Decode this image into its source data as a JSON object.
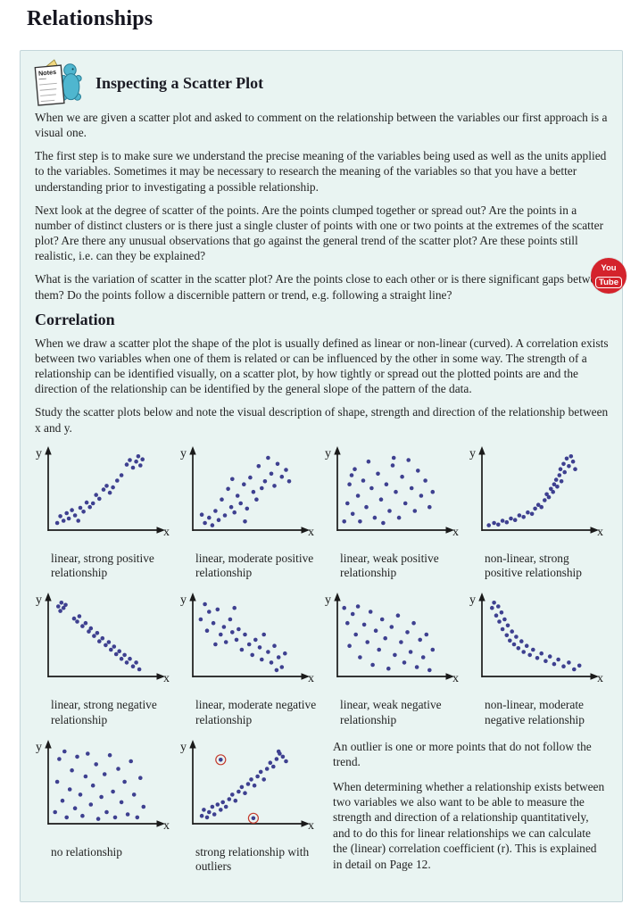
{
  "title": "Relationships",
  "notes": {
    "label": "Notes"
  },
  "section_inspecting": {
    "heading": "Inspecting a Scatter Plot",
    "p1": "When we are given a scatter plot and asked to comment on the relationship between the variables our first approach is a visual one.",
    "p2": "The first step is to make sure we understand the precise meaning of the variables being used as well as the units applied to the variables.  Sometimes it may be necessary to research the meaning of the variables so that you have a better understanding prior to investigating a possible relationship.",
    "p3": "Next look at the degree of scatter of the points.  Are the points clumped together or spread out?  Are the points in a number of distinct clusters or is there just a single cluster of points with one or two points at the extremes of the scatter plot?  Are there any unusual observations that go against the general trend of the scatter plot?  Are these points still realistic, i.e. can they be explained?",
    "p4": "What is the variation of scatter in the scatter plot?  Are the points close to each other or is there significant gaps between them?  Do the points follow a discernible pattern or trend, e.g. following a straight line?"
  },
  "section_correlation": {
    "heading": "Correlation",
    "p1": "When we draw a scatter plot the shape of the plot is usually defined as linear or non-linear (curved).  A correlation exists between two variables when one of them is related or can be influenced by the other in some way.  The strength of a relationship can be identified visually, on a scatter plot, by how tightly or spread out the plotted points are and the direction of the relationship can be identified by the general slope of the pattern of the data.",
    "p2": "Study the scatter plots below and note the visual description of shape, strength and direction of the relationship between x and y."
  },
  "youtube": {
    "line1": "You",
    "line2": "Tube"
  },
  "outlier_note": {
    "p1": "An outlier is one or more points that do not follow the trend.",
    "p2": "When determining whether a relationship exists between two variables we also want to be able to measure the strength and direction of a relationship quantitatively, and to do this for linear relationships we can calculate the (linear) correlation coefficient (r).  This is explained in detail on Page 12."
  },
  "theme": {
    "dot_color": "#3e4090",
    "axis_color": "#1a1a1a",
    "outlier_ring": "#c43b2e",
    "accent_red": "#d4232c",
    "box_bg": "#e9f4f2",
    "box_border": "#c3d6da"
  },
  "chart_data": [
    {
      "type": "scatter",
      "caption": "linear, strong positive relationship",
      "xlabel": "x",
      "ylabel": "y",
      "points": [
        [
          6,
          7
        ],
        [
          9,
          16
        ],
        [
          12,
          10
        ],
        [
          15,
          20
        ],
        [
          17,
          13
        ],
        [
          20,
          24
        ],
        [
          23,
          17
        ],
        [
          26,
          10
        ],
        [
          28,
          27
        ],
        [
          31,
          22
        ],
        [
          34,
          34
        ],
        [
          37,
          28
        ],
        [
          40,
          33
        ],
        [
          43,
          44
        ],
        [
          46,
          39
        ],
        [
          50,
          51
        ],
        [
          53,
          56
        ],
        [
          56,
          47
        ],
        [
          59,
          54
        ],
        [
          63,
          63
        ],
        [
          67,
          70
        ],
        [
          72,
          84
        ],
        [
          75,
          90
        ],
        [
          78,
          80
        ],
        [
          81,
          88
        ],
        [
          83,
          95
        ],
        [
          85,
          83
        ],
        [
          87,
          91
        ]
      ]
    },
    {
      "type": "scatter",
      "caption": "linear, moderate positive relationship",
      "xlabel": "x",
      "ylabel": "y",
      "points": [
        [
          6,
          18
        ],
        [
          9,
          7
        ],
        [
          13,
          14
        ],
        [
          16,
          4
        ],
        [
          19,
          23
        ],
        [
          22,
          11
        ],
        [
          25,
          38
        ],
        [
          28,
          17
        ],
        [
          31,
          52
        ],
        [
          34,
          28
        ],
        [
          37,
          21
        ],
        [
          40,
          43
        ],
        [
          43,
          33
        ],
        [
          46,
          58
        ],
        [
          49,
          26
        ],
        [
          52,
          67
        ],
        [
          55,
          48
        ],
        [
          58,
          38
        ],
        [
          60,
          82
        ],
        [
          63,
          53
        ],
        [
          66,
          62
        ],
        [
          69,
          93
        ],
        [
          72,
          72
        ],
        [
          75,
          56
        ],
        [
          78,
          85
        ],
        [
          82,
          68
        ],
        [
          86,
          77
        ],
        [
          89,
          62
        ],
        [
          47,
          9
        ],
        [
          35,
          65
        ]
      ]
    },
    {
      "type": "scatter",
      "caption": "linear, weak positive relationship",
      "xlabel": "x",
      "ylabel": "y",
      "points": [
        [
          4,
          9
        ],
        [
          7,
          33
        ],
        [
          9,
          58
        ],
        [
          12,
          19
        ],
        [
          14,
          78
        ],
        [
          17,
          43
        ],
        [
          19,
          9
        ],
        [
          22,
          63
        ],
        [
          25,
          28
        ],
        [
          27,
          88
        ],
        [
          30,
          53
        ],
        [
          33,
          14
        ],
        [
          36,
          72
        ],
        [
          39,
          38
        ],
        [
          41,
          7
        ],
        [
          44,
          58
        ],
        [
          47,
          23
        ],
        [
          50,
          83
        ],
        [
          53,
          48
        ],
        [
          56,
          14
        ],
        [
          59,
          68
        ],
        [
          62,
          33
        ],
        [
          65,
          90
        ],
        [
          68,
          53
        ],
        [
          71,
          23
        ],
        [
          74,
          76
        ],
        [
          77,
          43
        ],
        [
          81,
          63
        ],
        [
          85,
          28
        ],
        [
          51,
          93
        ],
        [
          88,
          48
        ],
        [
          11,
          70
        ]
      ]
    },
    {
      "type": "scatter",
      "caption": "non-linear, strong positive relationship",
      "xlabel": "x",
      "ylabel": "y",
      "points": [
        [
          4,
          4
        ],
        [
          9,
          7
        ],
        [
          13,
          5
        ],
        [
          17,
          10
        ],
        [
          21,
          8
        ],
        [
          25,
          13
        ],
        [
          29,
          11
        ],
        [
          33,
          17
        ],
        [
          37,
          15
        ],
        [
          41,
          21
        ],
        [
          45,
          19
        ],
        [
          48,
          26
        ],
        [
          51,
          31
        ],
        [
          54,
          28
        ],
        [
          57,
          37
        ],
        [
          59,
          45
        ],
        [
          61,
          41
        ],
        [
          63,
          52
        ],
        [
          65,
          48
        ],
        [
          66,
          58
        ],
        [
          68,
          64
        ],
        [
          69,
          55
        ],
        [
          71,
          70
        ],
        [
          72,
          78
        ],
        [
          73,
          62
        ],
        [
          75,
          85
        ],
        [
          76,
          74
        ],
        [
          78,
          92
        ],
        [
          80,
          82
        ],
        [
          82,
          95
        ],
        [
          84,
          88
        ],
        [
          86,
          78
        ]
      ]
    },
    {
      "type": "scatter",
      "caption": "linear, strong negative relationship",
      "xlabel": "x",
      "ylabel": "y",
      "points": [
        [
          7,
          90
        ],
        [
          10,
          95
        ],
        [
          12,
          88
        ],
        [
          9,
          84
        ],
        [
          14,
          92
        ],
        [
          22,
          74
        ],
        [
          25,
          70
        ],
        [
          27,
          77
        ],
        [
          30,
          64
        ],
        [
          33,
          68
        ],
        [
          36,
          57
        ],
        [
          38,
          61
        ],
        [
          41,
          51
        ],
        [
          44,
          55
        ],
        [
          46,
          44
        ],
        [
          49,
          48
        ],
        [
          52,
          39
        ],
        [
          55,
          43
        ],
        [
          57,
          33
        ],
        [
          60,
          37
        ],
        [
          62,
          27
        ],
        [
          65,
          31
        ],
        [
          67,
          21
        ],
        [
          70,
          26
        ],
        [
          72,
          16
        ],
        [
          75,
          21
        ],
        [
          78,
          11
        ],
        [
          81,
          16
        ],
        [
          84,
          7
        ]
      ]
    },
    {
      "type": "scatter",
      "caption": "linear, moderate negative relationship",
      "xlabel": "x",
      "ylabel": "y",
      "points": [
        [
          5,
          73
        ],
        [
          9,
          93
        ],
        [
          13,
          83
        ],
        [
          11,
          58
        ],
        [
          17,
          68
        ],
        [
          21,
          86
        ],
        [
          24,
          53
        ],
        [
          27,
          63
        ],
        [
          29,
          43
        ],
        [
          33,
          73
        ],
        [
          35,
          56
        ],
        [
          39,
          46
        ],
        [
          41,
          60
        ],
        [
          44,
          33
        ],
        [
          47,
          53
        ],
        [
          51,
          40
        ],
        [
          54,
          26
        ],
        [
          57,
          46
        ],
        [
          61,
          36
        ],
        [
          63,
          20
        ],
        [
          65,
          53
        ],
        [
          69,
          30
        ],
        [
          72,
          16
        ],
        [
          75,
          38
        ],
        [
          79,
          23
        ],
        [
          82,
          10
        ],
        [
          85,
          28
        ],
        [
          77,
          6
        ],
        [
          37,
          88
        ],
        [
          19,
          40
        ]
      ]
    },
    {
      "type": "scatter",
      "caption": "linear, weak negative relationship",
      "xlabel": "x",
      "ylabel": "y",
      "points": [
        [
          4,
          88
        ],
        [
          7,
          68
        ],
        [
          9,
          38
        ],
        [
          12,
          80
        ],
        [
          15,
          53
        ],
        [
          17,
          90
        ],
        [
          19,
          23
        ],
        [
          23,
          66
        ],
        [
          26,
          43
        ],
        [
          29,
          83
        ],
        [
          31,
          13
        ],
        [
          34,
          58
        ],
        [
          37,
          33
        ],
        [
          40,
          73
        ],
        [
          43,
          48
        ],
        [
          46,
          8
        ],
        [
          49,
          63
        ],
        [
          52,
          26
        ],
        [
          55,
          78
        ],
        [
          58,
          43
        ],
        [
          61,
          16
        ],
        [
          64,
          56
        ],
        [
          67,
          30
        ],
        [
          70,
          68
        ],
        [
          73,
          10
        ],
        [
          76,
          46
        ],
        [
          79,
          23
        ],
        [
          82,
          53
        ],
        [
          85,
          6
        ],
        [
          88,
          33
        ]
      ]
    },
    {
      "type": "scatter",
      "caption": "non-linear, moderate negative relationship",
      "xlabel": "x",
      "ylabel": "y",
      "points": [
        [
          7,
          88
        ],
        [
          9,
          95
        ],
        [
          11,
          78
        ],
        [
          13,
          90
        ],
        [
          14,
          70
        ],
        [
          16,
          82
        ],
        [
          17,
          60
        ],
        [
          19,
          73
        ],
        [
          21,
          52
        ],
        [
          22,
          65
        ],
        [
          24,
          45
        ],
        [
          26,
          57
        ],
        [
          28,
          40
        ],
        [
          30,
          50
        ],
        [
          32,
          35
        ],
        [
          35,
          44
        ],
        [
          37,
          30
        ],
        [
          40,
          38
        ],
        [
          43,
          26
        ],
        [
          46,
          33
        ],
        [
          50,
          22
        ],
        [
          54,
          28
        ],
        [
          58,
          18
        ],
        [
          62,
          24
        ],
        [
          66,
          14
        ],
        [
          70,
          20
        ],
        [
          75,
          11
        ],
        [
          80,
          16
        ],
        [
          85,
          7
        ],
        [
          90,
          12
        ]
      ]
    },
    {
      "type": "scatter",
      "caption": "no relationship",
      "xlabel": "x",
      "ylabel": "y",
      "points": [
        [
          4,
          13
        ],
        [
          6,
          53
        ],
        [
          8,
          83
        ],
        [
          11,
          28
        ],
        [
          13,
          93
        ],
        [
          15,
          6
        ],
        [
          18,
          43
        ],
        [
          20,
          68
        ],
        [
          23,
          18
        ],
        [
          25,
          86
        ],
        [
          28,
          36
        ],
        [
          30,
          8
        ],
        [
          33,
          60
        ],
        [
          35,
          90
        ],
        [
          38,
          23
        ],
        [
          40,
          48
        ],
        [
          43,
          76
        ],
        [
          45,
          4
        ],
        [
          48,
          33
        ],
        [
          51,
          63
        ],
        [
          53,
          13
        ],
        [
          56,
          88
        ],
        [
          59,
          40
        ],
        [
          61,
          6
        ],
        [
          64,
          70
        ],
        [
          67,
          26
        ],
        [
          70,
          53
        ],
        [
          73,
          10
        ],
        [
          76,
          80
        ],
        [
          79,
          36
        ],
        [
          82,
          6
        ],
        [
          85,
          58
        ],
        [
          88,
          20
        ]
      ]
    },
    {
      "type": "scatter",
      "caption": "strong relationship with outliers",
      "xlabel": "x",
      "ylabel": "y",
      "points": [
        [
          6,
          8
        ],
        [
          8,
          16
        ],
        [
          11,
          6
        ],
        [
          13,
          13
        ],
        [
          16,
          20
        ],
        [
          18,
          10
        ],
        [
          21,
          23
        ],
        [
          24,
          16
        ],
        [
          26,
          26
        ],
        [
          29,
          20
        ],
        [
          32,
          30
        ],
        [
          35,
          36
        ],
        [
          38,
          28
        ],
        [
          41,
          40
        ],
        [
          44,
          46
        ],
        [
          47,
          38
        ],
        [
          50,
          50
        ],
        [
          53,
          56
        ],
        [
          56,
          48
        ],
        [
          59,
          60
        ],
        [
          62,
          66
        ],
        [
          65,
          56
        ],
        [
          68,
          70
        ],
        [
          71,
          78
        ],
        [
          74,
          73
        ],
        [
          77,
          83
        ],
        [
          80,
          90
        ],
        [
          83,
          86
        ],
        [
          86,
          80
        ],
        [
          79,
          93
        ]
      ],
      "outliers": [
        [
          24,
          82
        ],
        [
          55,
          5
        ]
      ]
    }
  ]
}
